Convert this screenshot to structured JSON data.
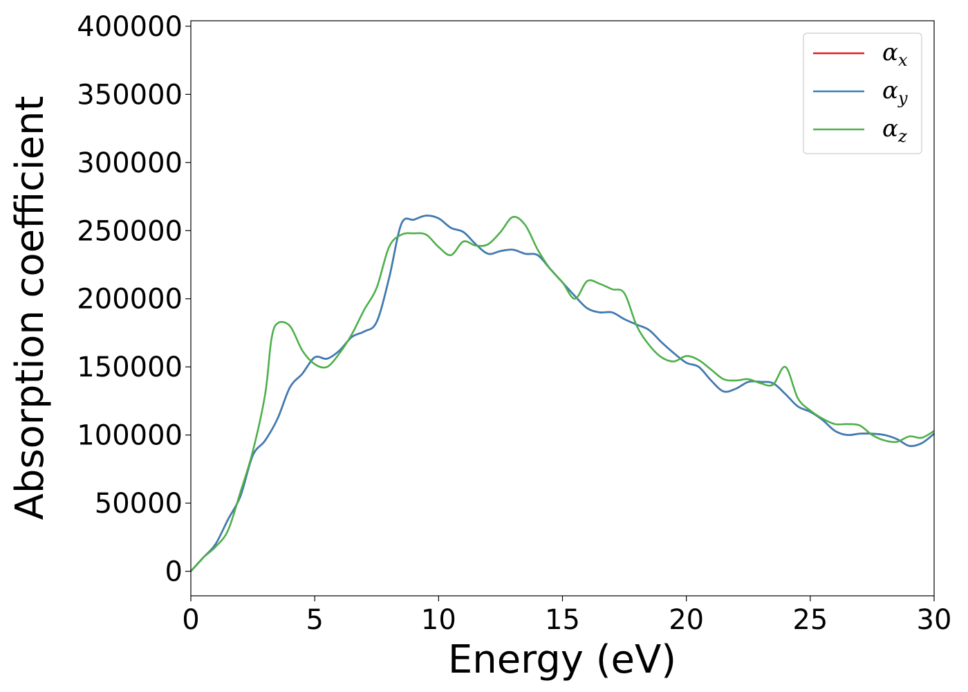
{
  "chart_data": {
    "type": "line",
    "xlabel": "Energy (eV)",
    "ylabel": "Absorption coefficient",
    "xlim": [
      0,
      30
    ],
    "ylim": [
      -18000,
      404000
    ],
    "x_ticks": [
      "0",
      "5",
      "10",
      "15",
      "20",
      "25",
      "30"
    ],
    "y_ticks": [
      "0",
      "50000",
      "100000",
      "150000",
      "200000",
      "250000",
      "300000",
      "350000",
      "400000"
    ],
    "grid": false,
    "legend_position": "top-right",
    "series": [
      {
        "name": "αx",
        "legend_base": "α",
        "legend_sub": "x",
        "color": "#e41a1c",
        "x": [
          0,
          0.5,
          1,
          1.5,
          2,
          2.5,
          3,
          3.5,
          4,
          4.5,
          5,
          5.5,
          6,
          6.5,
          7,
          7.5,
          8,
          8.5,
          9,
          9.5,
          10,
          10.5,
          11,
          11.5,
          12,
          12.5,
          13,
          13.5,
          14,
          14.5,
          15,
          15.5,
          16,
          16.5,
          17,
          17.5,
          18,
          18.5,
          19,
          19.5,
          20,
          20.5,
          21,
          21.5,
          22,
          22.5,
          23,
          23.5,
          24,
          24.5,
          25,
          25.5,
          26,
          26.5,
          27,
          27.5,
          28,
          28.5,
          29,
          29.5,
          30
        ],
        "y": [
          0,
          10000,
          20000,
          38000,
          55000,
          85000,
          96000,
          112000,
          135000,
          145000,
          157000,
          156000,
          162000,
          172000,
          176000,
          183000,
          215000,
          255000,
          258000,
          261000,
          259000,
          252000,
          249000,
          240000,
          233000,
          235000,
          236000,
          233000,
          232000,
          222000,
          212000,
          202000,
          193000,
          190000,
          190000,
          185000,
          181000,
          177000,
          168000,
          160000,
          153000,
          150000,
          140000,
          132000,
          134000,
          139000,
          139000,
          138000,
          130000,
          121000,
          117000,
          111000,
          103000,
          100000,
          101000,
          101000,
          100000,
          97000,
          92000,
          94000,
          101000
        ]
      },
      {
        "name": "αy",
        "legend_base": "α",
        "legend_sub": "y",
        "color": "#377eb8",
        "x": [
          0,
          0.5,
          1,
          1.5,
          2,
          2.5,
          3,
          3.5,
          4,
          4.5,
          5,
          5.5,
          6,
          6.5,
          7,
          7.5,
          8,
          8.5,
          9,
          9.5,
          10,
          10.5,
          11,
          11.5,
          12,
          12.5,
          13,
          13.5,
          14,
          14.5,
          15,
          15.5,
          16,
          16.5,
          17,
          17.5,
          18,
          18.5,
          19,
          19.5,
          20,
          20.5,
          21,
          21.5,
          22,
          22.5,
          23,
          23.5,
          24,
          24.5,
          25,
          25.5,
          26,
          26.5,
          27,
          27.5,
          28,
          28.5,
          29,
          29.5,
          30
        ],
        "y": [
          0,
          10000,
          20000,
          38000,
          55000,
          85000,
          96000,
          112000,
          135000,
          145000,
          157000,
          156000,
          162000,
          172000,
          176000,
          183000,
          215000,
          255000,
          258000,
          261000,
          259000,
          252000,
          249000,
          240000,
          233000,
          235000,
          236000,
          233000,
          232000,
          222000,
          212000,
          202000,
          193000,
          190000,
          190000,
          185000,
          181000,
          177000,
          168000,
          160000,
          153000,
          150000,
          140000,
          132000,
          134000,
          139000,
          139000,
          138000,
          130000,
          121000,
          117000,
          111000,
          103000,
          100000,
          101000,
          101000,
          100000,
          97000,
          92000,
          94000,
          101000
        ]
      },
      {
        "name": "αz",
        "legend_base": "α",
        "legend_sub": "z",
        "color": "#4daf4a",
        "x": [
          0,
          0.5,
          1,
          1.5,
          2,
          2.5,
          3,
          3.25,
          3.5,
          4,
          4.5,
          5,
          5.5,
          6,
          6.5,
          7,
          7.5,
          8,
          8.5,
          9,
          9.5,
          10,
          10.5,
          11,
          11.5,
          12,
          12.5,
          13,
          13.5,
          14,
          14.5,
          15,
          15.5,
          16,
          16.5,
          17,
          17.5,
          18,
          18.5,
          19,
          19.5,
          20,
          20.5,
          21,
          21.5,
          22,
          22.5,
          23,
          23.5,
          24,
          24.5,
          25,
          25.5,
          26,
          26.5,
          27,
          27.5,
          28,
          28.5,
          29,
          29.5,
          30
        ],
        "y": [
          0,
          10000,
          18000,
          30000,
          58000,
          88000,
          130000,
          170000,
          182000,
          180000,
          162000,
          152000,
          150000,
          160000,
          174000,
          192000,
          208000,
          238000,
          247000,
          248000,
          247000,
          238000,
          232000,
          242000,
          239000,
          240000,
          249000,
          260000,
          254000,
          236000,
          222000,
          212000,
          200000,
          213000,
          211000,
          207000,
          204000,
          180000,
          166000,
          157000,
          154000,
          158000,
          155000,
          148000,
          141000,
          140000,
          141000,
          138000,
          137000,
          150000,
          127000,
          118000,
          112000,
          108000,
          108000,
          107000,
          100000,
          96000,
          95000,
          99000,
          98000,
          103000
        ]
      }
    ]
  }
}
